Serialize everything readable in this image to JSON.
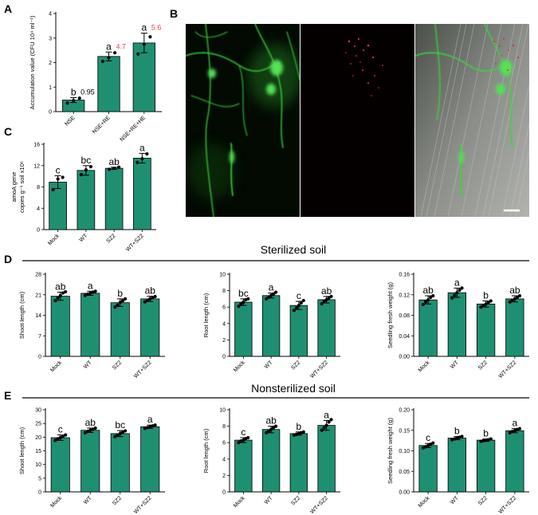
{
  "panel_letters": {
    "A": "A",
    "B": "B",
    "C": "C",
    "D": "D",
    "E": "E"
  },
  "section_titles": {
    "sterilized": "Sterilized soil",
    "nonsterilized": "Nonsterilized soil"
  },
  "colors": {
    "bar": "#1f8f72",
    "bar_edge": "#000000",
    "point": "#000000",
    "value_red": "#e84a4a",
    "value_black": "#000000"
  },
  "microscopy": {
    "panel": "B",
    "channels": [
      "green-fluorescence",
      "red-fluorescence",
      "merged"
    ],
    "scale_bar": true
  },
  "chart_data": [
    {
      "id": "A",
      "type": "bar",
      "categories": [
        "NSE",
        "NSE+RE",
        "NSE+RE+HE"
      ],
      "values": [
        0.47,
        2.25,
        2.8
      ],
      "errors": [
        0.1,
        0.18,
        0.4
      ],
      "points": [
        [
          0.35,
          0.45,
          0.55
        ],
        [
          2.05,
          2.2,
          2.4
        ],
        [
          2.35,
          2.75,
          3.05
        ]
      ],
      "letters": [
        "b",
        "a",
        "a"
      ],
      "value_labels": [
        "0.95",
        "4.7",
        "5.6"
      ],
      "value_label_colors": [
        "#000000",
        "#e84a4a",
        "#e84a4a"
      ],
      "ylabel": "Accumulation value (CFU 10⁴ ml⁻¹)",
      "ylim": [
        0,
        4
      ],
      "yticks": [
        0,
        1,
        2,
        3,
        4
      ],
      "rotate_xticks": true
    },
    {
      "id": "C",
      "type": "bar",
      "categories": [
        "Mock",
        "WT",
        "SZ2",
        "WT+SZ2"
      ],
      "values": [
        8.9,
        11.1,
        11.5,
        13.4
      ],
      "errors": [
        1.2,
        0.9,
        0.2,
        0.9
      ],
      "points": [
        [
          7.5,
          9.5,
          9.8
        ],
        [
          10.3,
          11.2,
          11.8
        ],
        [
          11.3,
          11.5,
          11.7
        ],
        [
          12.6,
          13.3,
          14.2
        ]
      ],
      "letters": [
        "c",
        "bc",
        "ab",
        "a"
      ],
      "ylabel_lines": [
        "amoA gene",
        "copies g⁻¹ soil x10⁶"
      ],
      "ylim": [
        0,
        16
      ],
      "yticks": [
        0,
        4,
        8,
        12,
        16
      ],
      "rotate_xticks": true
    },
    {
      "id": "D1",
      "type": "bar",
      "categories": [
        "Mock",
        "WT",
        "SZ2",
        "WT+SZ2"
      ],
      "values": [
        20.5,
        21.5,
        18.3,
        19.6
      ],
      "errors": [
        1.4,
        0.7,
        1.3,
        0.9
      ],
      "points": [
        [
          19.0,
          19.9,
          20.7,
          21.6,
          22.0
        ],
        [
          20.8,
          21.2,
          21.5,
          21.9,
          22.2
        ],
        [
          16.8,
          17.5,
          18.4,
          19.0,
          19.6
        ],
        [
          18.6,
          19.1,
          19.6,
          20.1,
          20.4
        ]
      ],
      "letters": [
        "ab",
        "a",
        "b",
        "ab"
      ],
      "ylabel": "Shoot length (cm)",
      "ylim": [
        0,
        28
      ],
      "yticks": [
        0,
        7,
        14,
        21,
        28
      ],
      "rotate_xticks": true
    },
    {
      "id": "D2",
      "type": "bar",
      "categories": [
        "Mock",
        "WT",
        "SZ2",
        "WT+SZ2"
      ],
      "values": [
        6.6,
        7.4,
        6.2,
        6.9
      ],
      "errors": [
        0.4,
        0.3,
        0.5,
        0.4
      ],
      "points": [
        [
          6.1,
          6.4,
          6.6,
          6.9,
          7.0
        ],
        [
          7.0,
          7.2,
          7.4,
          7.6,
          7.8
        ],
        [
          5.6,
          5.9,
          6.2,
          6.5,
          6.8
        ],
        [
          6.4,
          6.7,
          6.9,
          7.1,
          7.3
        ]
      ],
      "letters": [
        "bc",
        "a",
        "c",
        "ab"
      ],
      "ylabel": "Root length (cm)",
      "ylim": [
        0,
        10
      ],
      "yticks": [
        0,
        2,
        4,
        6,
        8,
        10
      ],
      "rotate_xticks": true
    },
    {
      "id": "D3",
      "type": "bar",
      "categories": [
        "Mock",
        "WT",
        "SZ2",
        "WT+SZ2"
      ],
      "values": [
        0.11,
        0.124,
        0.102,
        0.112
      ],
      "errors": [
        0.008,
        0.009,
        0.006,
        0.006
      ],
      "points": [
        [
          0.101,
          0.106,
          0.11,
          0.115,
          0.118
        ],
        [
          0.114,
          0.119,
          0.124,
          0.129,
          0.133
        ],
        [
          0.096,
          0.099,
          0.102,
          0.105,
          0.108
        ],
        [
          0.106,
          0.109,
          0.112,
          0.115,
          0.118
        ]
      ],
      "letters": [
        "ab",
        "a",
        "b",
        "ab"
      ],
      "ylabel": "Seedling fresh weight (g)",
      "ylim": [
        0,
        0.16
      ],
      "yticks": [
        0.0,
        0.04,
        0.08,
        0.12,
        0.16
      ],
      "tick_decimals": 2,
      "rotate_xticks": true
    },
    {
      "id": "E1",
      "type": "bar",
      "categories": [
        "Mock",
        "WT",
        "SZ2",
        "WT+SZ2"
      ],
      "values": [
        19.8,
        22.5,
        21.3,
        23.8
      ],
      "errors": [
        1.0,
        0.8,
        1.1,
        0.6
      ],
      "points": [
        [
          18.8,
          19.4,
          19.8,
          20.3,
          20.8
        ],
        [
          21.6,
          22.1,
          22.5,
          22.9,
          23.3
        ],
        [
          20.2,
          20.8,
          21.3,
          21.8,
          22.3
        ],
        [
          23.2,
          23.5,
          23.8,
          24.1,
          24.4
        ]
      ],
      "letters": [
        "c",
        "ab",
        "bc",
        "a"
      ],
      "ylabel": "Shoot length (cm)",
      "ylim": [
        0,
        30
      ],
      "yticks": [
        0,
        5,
        10,
        15,
        20,
        25,
        30
      ],
      "rotate_xticks": true
    },
    {
      "id": "E2",
      "type": "bar",
      "categories": [
        "Mock",
        "WT",
        "SZ2",
        "WT+SZ2"
      ],
      "values": [
        6.3,
        7.6,
        7.1,
        8.1
      ],
      "errors": [
        0.3,
        0.4,
        0.2,
        0.6
      ],
      "points": [
        [
          6.0,
          6.2,
          6.3,
          6.5,
          6.6
        ],
        [
          7.2,
          7.4,
          7.6,
          7.8,
          8.0
        ],
        [
          6.9,
          7.0,
          7.1,
          7.2,
          7.3
        ],
        [
          7.5,
          7.8,
          8.1,
          8.5,
          8.8
        ]
      ],
      "letters": [
        "c",
        "ab",
        "b",
        "a"
      ],
      "ylabel": "Root length (cm)",
      "ylim": [
        0,
        10
      ],
      "yticks": [
        0,
        2,
        4,
        6,
        8,
        10
      ],
      "rotate_xticks": true
    },
    {
      "id": "E3",
      "type": "bar",
      "categories": [
        "Mock",
        "WT",
        "SZ2",
        "WT+SZ2"
      ],
      "values": [
        0.113,
        0.131,
        0.126,
        0.149
      ],
      "errors": [
        0.005,
        0.004,
        0.003,
        0.005
      ],
      "points": [
        [
          0.107,
          0.11,
          0.113,
          0.116,
          0.119
        ],
        [
          0.127,
          0.129,
          0.131,
          0.133,
          0.135
        ],
        [
          0.123,
          0.125,
          0.126,
          0.127,
          0.129
        ],
        [
          0.144,
          0.147,
          0.149,
          0.152,
          0.154
        ]
      ],
      "letters": [
        "c",
        "b",
        "b",
        "a"
      ],
      "ylabel": "Seedling fresh weight (g)",
      "ylim": [
        0,
        0.2
      ],
      "yticks": [
        0.0,
        0.05,
        0.1,
        0.15,
        0.2
      ],
      "tick_decimals": 2,
      "rotate_xticks": true
    }
  ]
}
